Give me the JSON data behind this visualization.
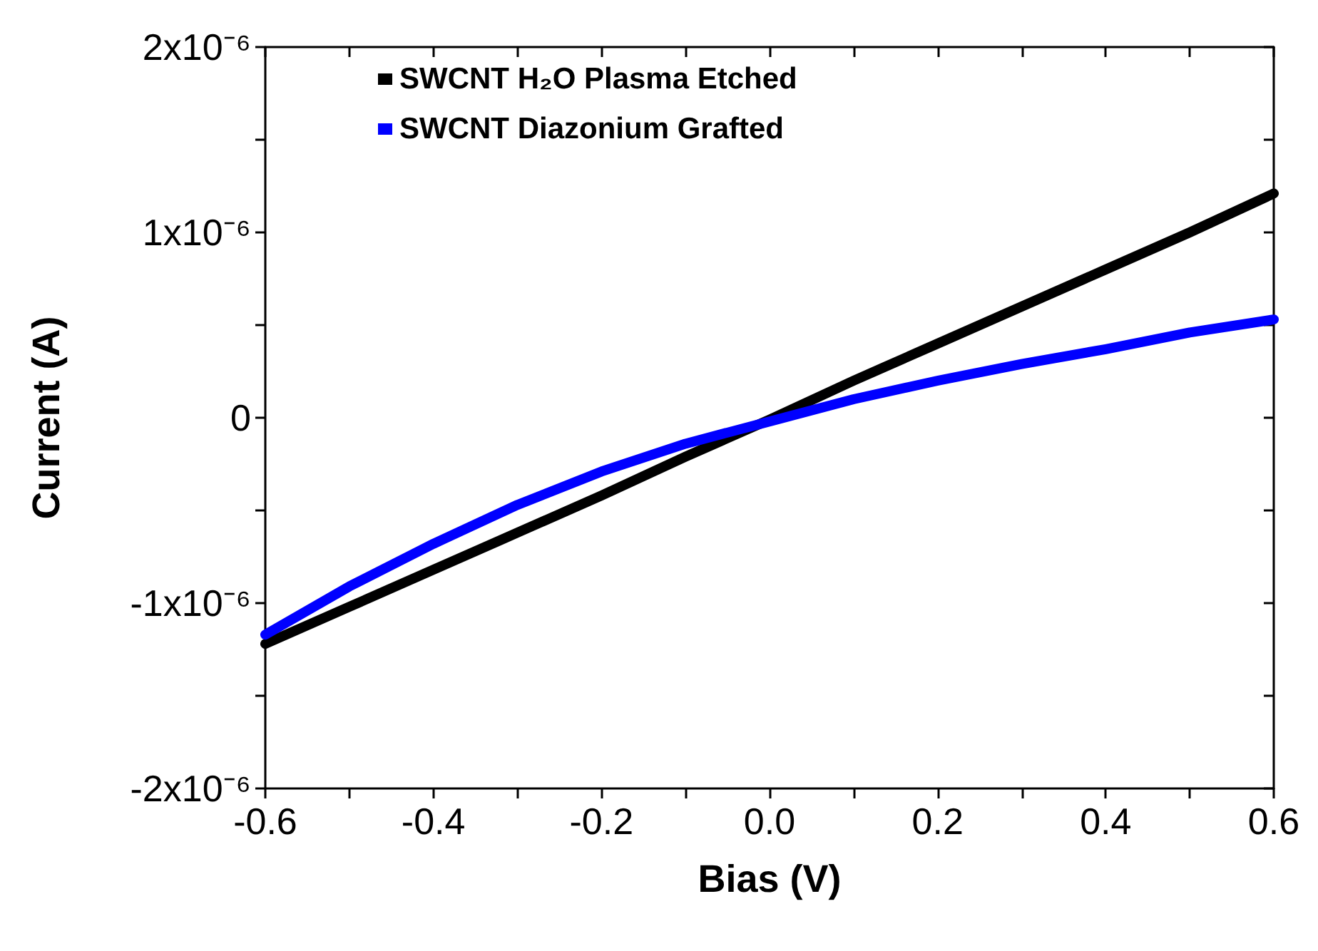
{
  "chart_data": {
    "type": "line",
    "xlabel": "Bias (V)",
    "ylabel": "Current (A)",
    "legend": "top left",
    "grid": false,
    "line_style": "solid",
    "xlim": [
      -0.6,
      0.6
    ],
    "xticks": [
      -0.6,
      {
        "value": -0.5,
        "label": null
      },
      -0.4,
      {
        "value": -0.3,
        "label": null
      },
      -0.2,
      {
        "value": -0.1,
        "label": null
      },
      {
        "value": 0,
        "label": "0.0"
      },
      {
        "value": 0.1,
        "label": null
      },
      0.2,
      {
        "value": 0.3,
        "label": null
      },
      0.4,
      {
        "value": 0.5,
        "label": null
      },
      0.6
    ],
    "ylim": [
      -2e-06,
      2e-06
    ],
    "yticks": [
      {
        "value": -2e-06,
        "label": "-2x10⁻⁶"
      },
      {
        "value": -1.5e-06,
        "label": null
      },
      {
        "value": -1e-06,
        "label": "-1x10⁻⁶"
      },
      {
        "value": -5e-07,
        "label": null
      },
      0,
      {
        "value": 5e-07,
        "label": null
      },
      {
        "value": 1e-06,
        "label": "1x10⁻⁶"
      },
      {
        "value": 1.5e-06,
        "label": null
      },
      {
        "value": 2e-06,
        "label": "2x10⁻⁶"
      }
    ],
    "x": [
      -0.6,
      -0.5,
      -0.4,
      -0.3,
      -0.2,
      -0.1,
      0,
      0.1,
      0.2,
      0.3,
      0.4,
      0.5,
      0.6
    ],
    "series": [
      {
        "name": "SWCNT H₂O Plasma Etched",
        "color": "#000000",
        "values": [
          -1.22e-06,
          -1.02e-06,
          -8.2e-07,
          -6.2e-07,
          -4.2e-07,
          -2.1e-07,
          -1e-08,
          2e-07,
          4e-07,
          6e-07,
          8e-07,
          1e-06,
          1.21e-06
        ]
      },
      {
        "name": "SWCNT Diazonium Grafted",
        "color": "#0000ff",
        "values": [
          -1.17e-06,
          -9.1e-07,
          -6.8e-07,
          -4.7e-07,
          -2.9e-07,
          -1.4e-07,
          -2e-08,
          1e-07,
          2e-07,
          2.9e-07,
          3.7e-07,
          4.6e-07,
          5.3e-07
        ]
      }
    ]
  }
}
